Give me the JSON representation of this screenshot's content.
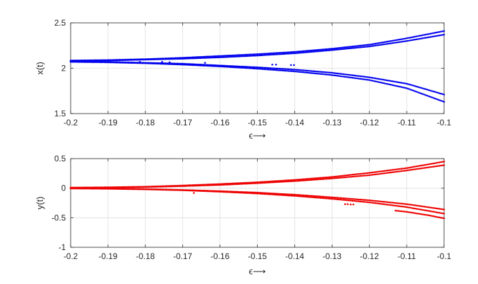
{
  "chart_data": [
    {
      "type": "scatter",
      "xlabel": "ϵ⟶",
      "ylabel": "x(t)",
      "xlim": [
        -0.2,
        -0.1
      ],
      "ylim": [
        1.5,
        2.5
      ],
      "x_ticks": [
        "-0.2",
        "-0.19",
        "-0.18",
        "-0.17",
        "-0.16",
        "-0.15",
        "-0.14",
        "-0.13",
        "-0.12",
        "-0.11",
        "-0.1"
      ],
      "y_ticks": [
        "1.5",
        "2",
        "2.5"
      ],
      "grid": true,
      "color": "#0000ee",
      "series": [
        {
          "x": [
            -0.2,
            -0.19,
            -0.18,
            -0.17,
            -0.16,
            -0.15,
            -0.14,
            -0.13,
            -0.12,
            -0.11,
            -0.1
          ],
          "y": [
            2.085,
            2.09,
            2.1,
            2.115,
            2.135,
            2.155,
            2.18,
            2.215,
            2.26,
            2.33,
            2.41
          ]
        },
        {
          "x": [
            -0.2,
            -0.19,
            -0.18,
            -0.17,
            -0.16,
            -0.15,
            -0.14,
            -0.13,
            -0.12,
            -0.11,
            -0.1
          ],
          "y": [
            2.08,
            2.085,
            2.095,
            2.105,
            2.12,
            2.14,
            2.165,
            2.2,
            2.24,
            2.3,
            2.37
          ]
        },
        {
          "x": [
            -0.2,
            -0.19,
            -0.18,
            -0.17,
            -0.16,
            -0.15,
            -0.14,
            -0.13,
            -0.12,
            -0.11,
            -0.1
          ],
          "y": [
            2.075,
            2.07,
            2.06,
            2.05,
            2.03,
            2.01,
            1.985,
            1.95,
            1.9,
            1.83,
            1.71
          ]
        },
        {
          "x": [
            -0.2,
            -0.19,
            -0.18,
            -0.17,
            -0.16,
            -0.15,
            -0.14,
            -0.13,
            -0.12,
            -0.11,
            -0.1
          ],
          "y": [
            2.07,
            2.065,
            2.055,
            2.04,
            2.02,
            1.995,
            1.965,
            1.925,
            1.87,
            1.78,
            1.63
          ]
        }
      ],
      "points": [
        {
          "x": -0.1815,
          "y": 2.07
        },
        {
          "x": -0.1755,
          "y": 2.07
        },
        {
          "x": -0.1735,
          "y": 2.065
        },
        {
          "x": -0.164,
          "y": 2.06
        },
        {
          "x": -0.146,
          "y": 2.04
        },
        {
          "x": -0.145,
          "y": 2.04
        },
        {
          "x": -0.141,
          "y": 2.035
        },
        {
          "x": -0.1402,
          "y": 2.035
        }
      ]
    },
    {
      "type": "scatter",
      "xlabel": "ϵ⟶",
      "ylabel": "y(t)",
      "xlim": [
        -0.2,
        -0.1
      ],
      "ylim": [
        -1,
        0.5
      ],
      "x_ticks": [
        "-0.2",
        "-0.19",
        "-0.18",
        "-0.17",
        "-0.16",
        "-0.15",
        "-0.14",
        "-0.13",
        "-0.12",
        "-0.11",
        "-0.1"
      ],
      "y_ticks": [
        "-1",
        "-0.5",
        "0",
        "0.5"
      ],
      "grid": true,
      "color": "#ee0000",
      "series": [
        {
          "x": [
            -0.2,
            -0.19,
            -0.18,
            -0.17,
            -0.16,
            -0.15,
            -0.14,
            -0.13,
            -0.12,
            -0.11,
            -0.1
          ],
          "y": [
            0.01,
            0.015,
            0.025,
            0.045,
            0.07,
            0.1,
            0.14,
            0.19,
            0.26,
            0.34,
            0.45
          ]
        },
        {
          "x": [
            -0.2,
            -0.19,
            -0.18,
            -0.17,
            -0.16,
            -0.15,
            -0.14,
            -0.13,
            -0.12,
            -0.11,
            -0.1
          ],
          "y": [
            0.005,
            0.01,
            0.02,
            0.035,
            0.055,
            0.085,
            0.12,
            0.165,
            0.22,
            0.3,
            0.39
          ]
        },
        {
          "x": [
            -0.2,
            -0.19,
            -0.18,
            -0.17,
            -0.16,
            -0.15,
            -0.14,
            -0.13,
            -0.12,
            -0.11,
            -0.1
          ],
          "y": [
            0.0,
            -0.005,
            -0.015,
            -0.03,
            -0.05,
            -0.075,
            -0.11,
            -0.155,
            -0.205,
            -0.27,
            -0.36
          ]
        },
        {
          "x": [
            -0.2,
            -0.19,
            -0.18,
            -0.17,
            -0.16,
            -0.15,
            -0.14,
            -0.13,
            -0.12,
            -0.11,
            -0.1
          ],
          "y": [
            -0.005,
            -0.01,
            -0.02,
            -0.035,
            -0.06,
            -0.09,
            -0.13,
            -0.18,
            -0.24,
            -0.32,
            -0.43
          ]
        },
        {
          "x": [
            -0.113,
            -0.11,
            -0.107,
            -0.104,
            -0.1
          ],
          "y": [
            -0.38,
            -0.4,
            -0.43,
            -0.46,
            -0.51
          ]
        }
      ],
      "points": [
        {
          "x": -0.167,
          "y": -0.08
        },
        {
          "x": -0.1265,
          "y": -0.27
        },
        {
          "x": -0.1258,
          "y": -0.27
        },
        {
          "x": -0.125,
          "y": -0.275
        },
        {
          "x": -0.1243,
          "y": -0.275
        }
      ]
    }
  ]
}
